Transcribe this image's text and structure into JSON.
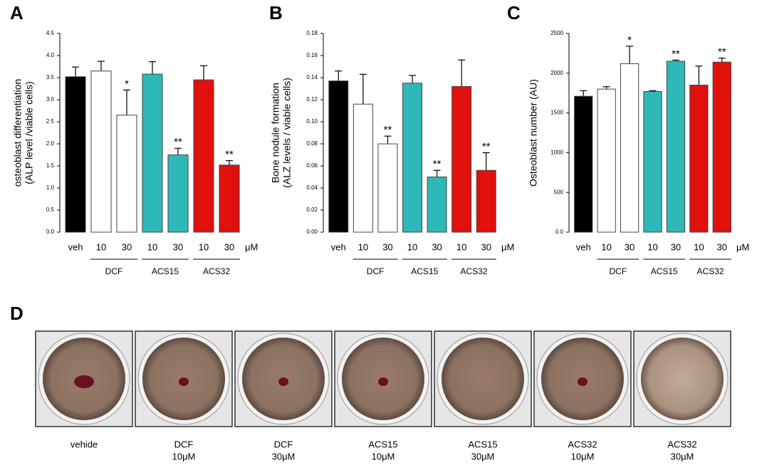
{
  "chart_data": [
    {
      "type": "bar",
      "panel": "A",
      "ylabel": [
        "osteoblast differentiation",
        "(ALP level /viable cells)"
      ],
      "categories": [
        "veh",
        "10",
        "30",
        "10",
        "30",
        "10",
        "30"
      ],
      "unit": "μM",
      "groups": [
        "DCF",
        "ACS15",
        "ACS32"
      ],
      "values": [
        3.52,
        3.65,
        2.65,
        3.58,
        1.75,
        3.45,
        1.52
      ],
      "errors": [
        0.22,
        0.22,
        0.57,
        0.28,
        0.15,
        0.32,
        0.1
      ],
      "significance": [
        null,
        null,
        "*",
        null,
        "**",
        null,
        "**"
      ],
      "colors": [
        "#000000",
        "#ffffff",
        "#ffffff",
        "#2fb8b8",
        "#2fb8b8",
        "#e0100c",
        "#e0100c"
      ],
      "ylim": [
        0,
        4.5
      ],
      "yticks": [
        {
          "value": 0,
          "label": "0.0"
        },
        0.5,
        {
          "value": 1,
          "label": "1.0"
        },
        1.5,
        {
          "value": 2,
          "label": "2.0"
        },
        2.5,
        {
          "value": 3,
          "label": "3.0"
        },
        3.5,
        {
          "value": 4,
          "label": "4.0"
        },
        4.5
      ]
    },
    {
      "type": "bar",
      "panel": "B",
      "ylabel": [
        "Bone nodule formation",
        "(ALZ levels / viable cells)"
      ],
      "categories": [
        "veh",
        "10",
        "30",
        "10",
        "30",
        "10",
        "30"
      ],
      "unit": "μM",
      "groups": [
        "DCF",
        "ACS15",
        "ACS32"
      ],
      "values": [
        0.137,
        0.116,
        0.08,
        0.135,
        0.05,
        0.132,
        0.056
      ],
      "errors": [
        0.009,
        0.027,
        0.007,
        0.007,
        0.006,
        0.024,
        0.016
      ],
      "significance": [
        null,
        null,
        "**",
        null,
        "**",
        null,
        "**"
      ],
      "colors": [
        "#000000",
        "#ffffff",
        "#ffffff",
        "#2fb8b8",
        "#2fb8b8",
        "#e0100c",
        "#e0100c"
      ],
      "ylim": [
        0,
        0.18
      ],
      "yticks": [
        {
          "value": 0,
          "label": "0.00"
        },
        0.02,
        0.04,
        0.06,
        0.08,
        {
          "value": 0.1,
          "label": "0.10"
        },
        0.12,
        0.14,
        0.16,
        0.18
      ]
    },
    {
      "type": "bar",
      "panel": "C",
      "ylabel": [
        "Osteoblast number (AU)"
      ],
      "categories": [
        "veh",
        "10",
        "30",
        "10",
        "30",
        "10",
        "30"
      ],
      "unit": "μM",
      "groups": [
        "DCF",
        "ACS15",
        "ACS32"
      ],
      "values": [
        1710,
        1800,
        2120,
        1770,
        2150,
        1850,
        2140
      ],
      "errors": [
        70,
        30,
        220,
        10,
        15,
        240,
        50
      ],
      "significance": [
        null,
        null,
        "*",
        null,
        "**",
        null,
        "**"
      ],
      "colors": [
        "#000000",
        "#ffffff",
        "#ffffff",
        "#2fb8b8",
        "#2fb8b8",
        "#e0100c",
        "#e0100c"
      ],
      "ylim": [
        0,
        2500
      ],
      "yticks": [
        {
          "value": 0,
          "label": "0.0"
        },
        500,
        1000,
        1500,
        2000,
        2500
      ]
    }
  ],
  "panel_d": {
    "panel": "D",
    "wells": [
      {
        "label": [
          "vehide"
        ]
      },
      {
        "label": [
          "DCF",
          "10μM"
        ]
      },
      {
        "label": [
          "DCF",
          "30μM"
        ]
      },
      {
        "label": [
          "ACS15",
          "10μM"
        ]
      },
      {
        "label": [
          "ACS15",
          "30μM"
        ]
      },
      {
        "label": [
          "ACS32",
          "10μM"
        ]
      },
      {
        "label": [
          "ACS32",
          "30μM"
        ]
      }
    ]
  }
}
